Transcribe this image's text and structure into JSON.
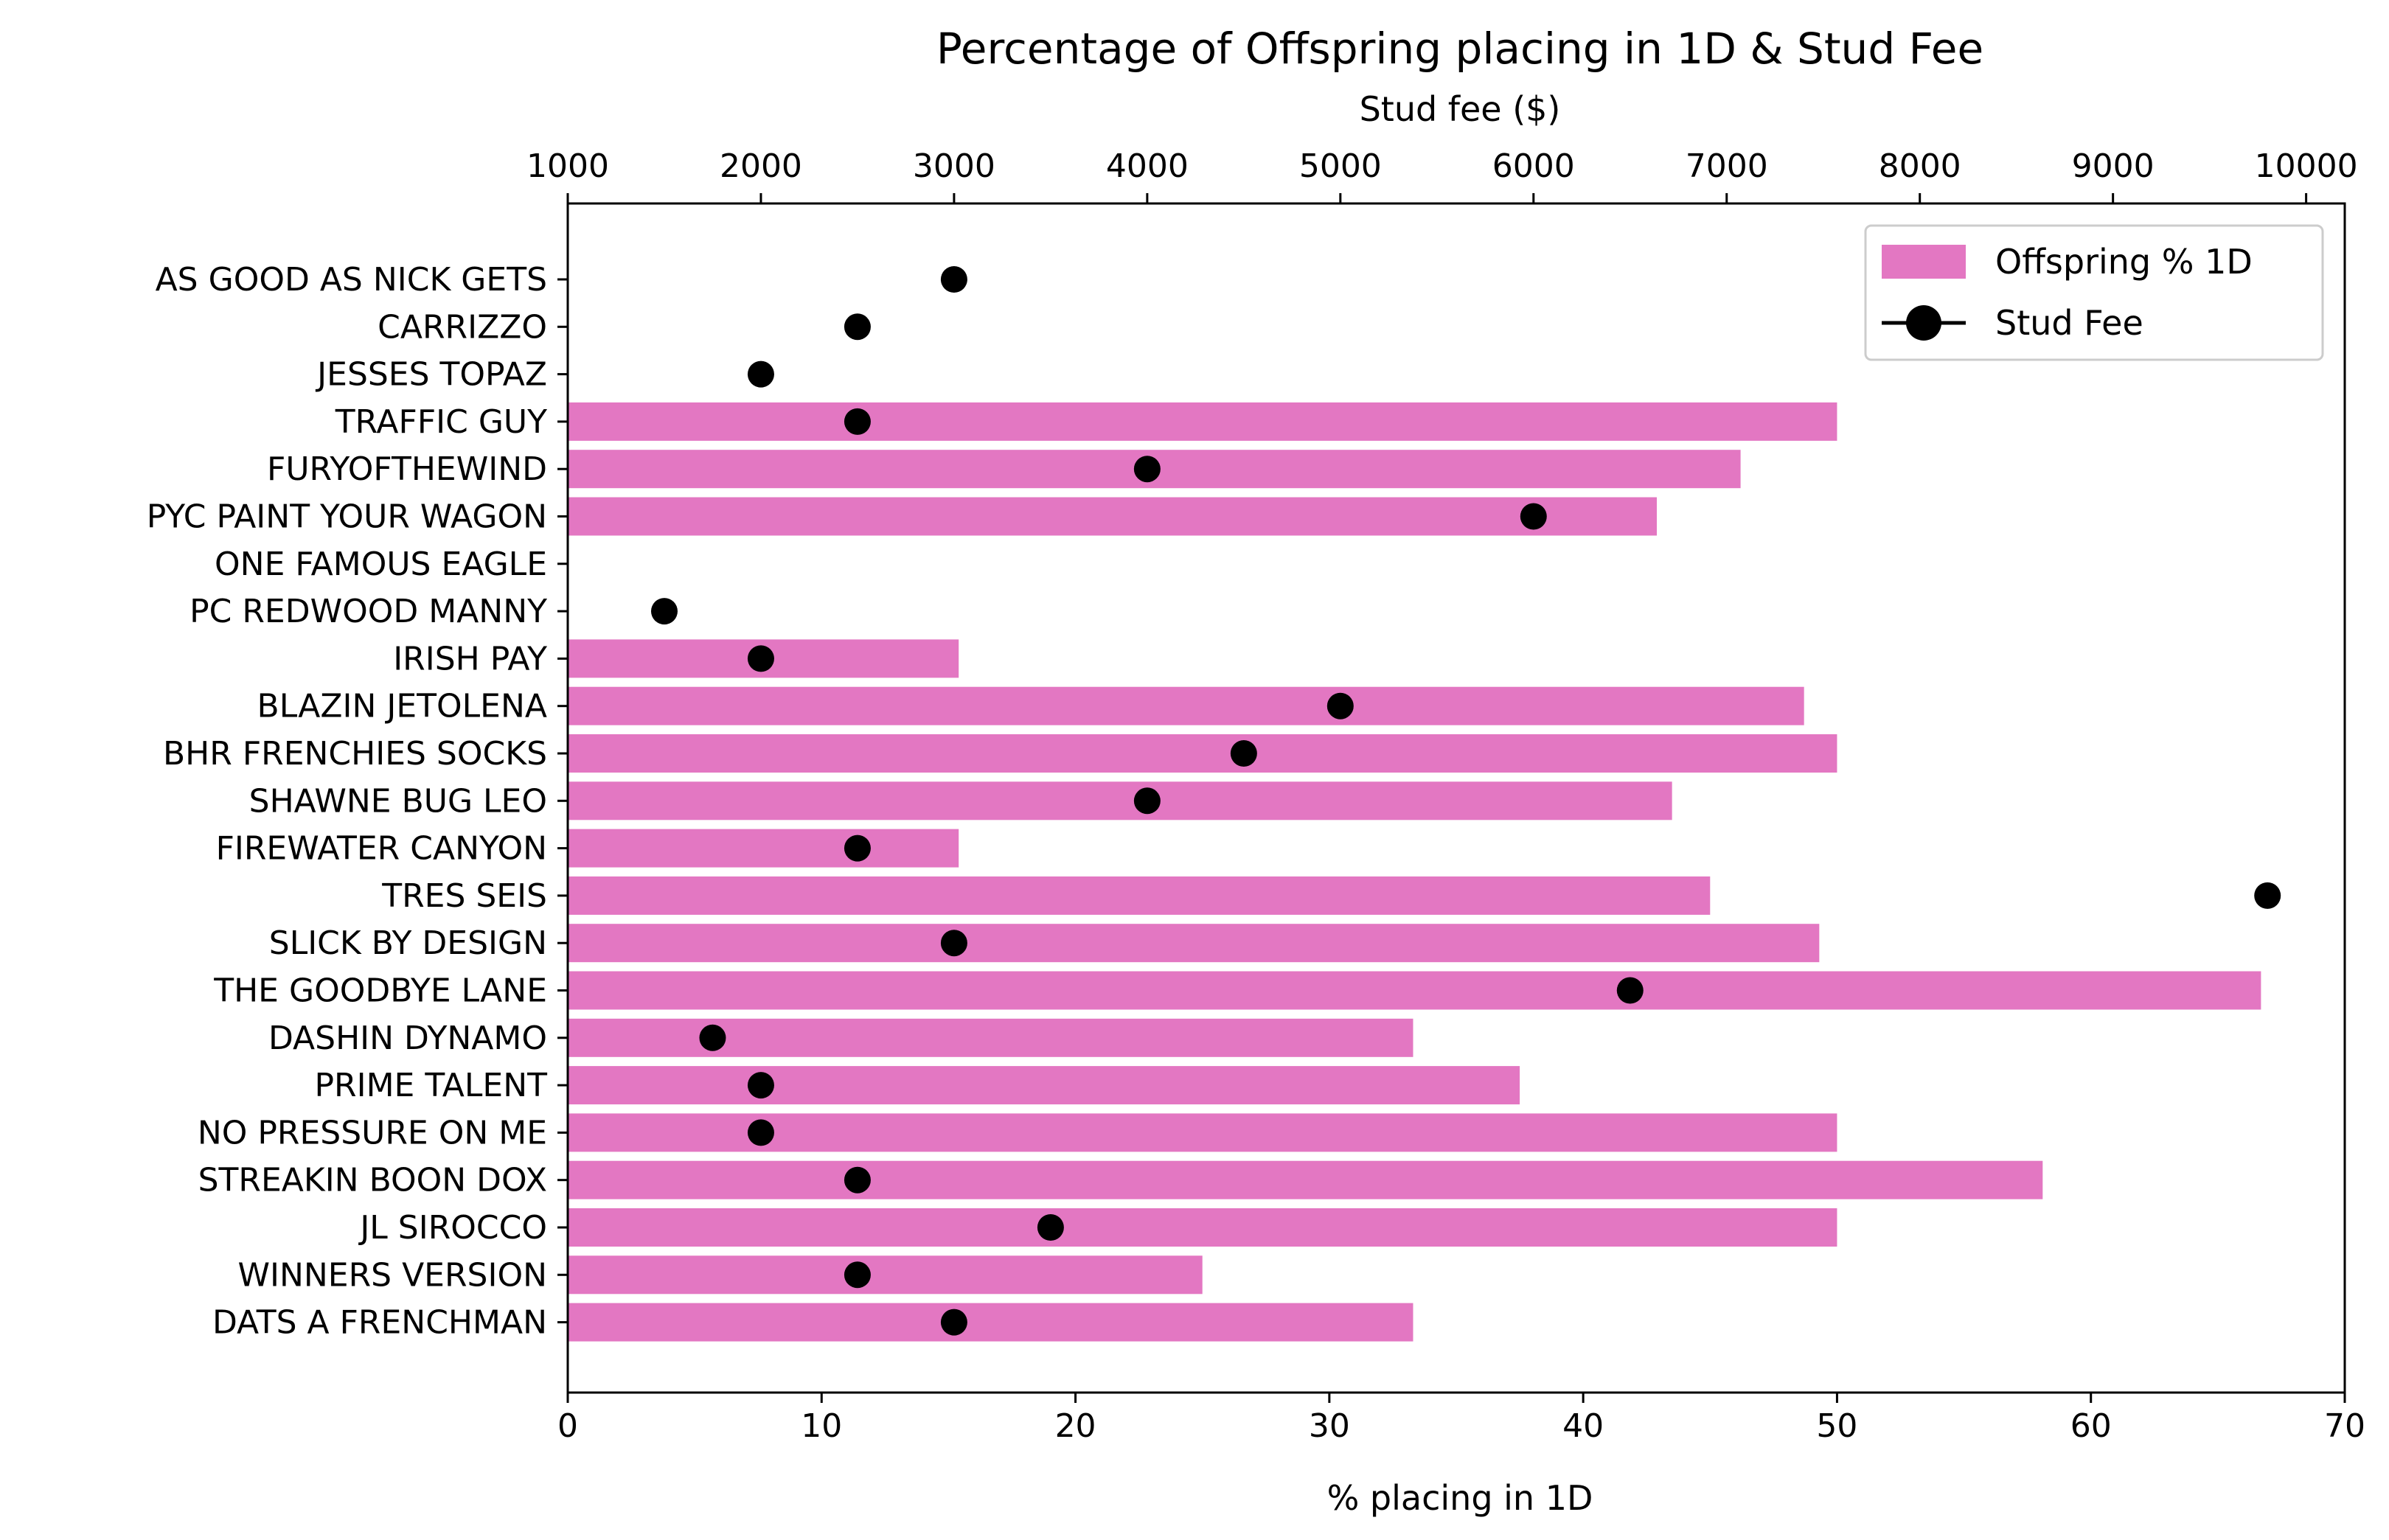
{
  "chart_data": {
    "type": "bar",
    "title": "Percentage of Offspring placing in 1D & Stud Fee",
    "xlabel": "% placing in 1D",
    "x2label": "Stud fee ($)",
    "xlim": [
      0,
      70
    ],
    "x2lim": [
      1000,
      10200
    ],
    "xticks": [
      0,
      10,
      20,
      30,
      40,
      50,
      60,
      70
    ],
    "x2ticks": [
      1000,
      2000,
      3000,
      4000,
      5000,
      6000,
      7000,
      8000,
      9000,
      10000
    ],
    "orientation": "horizontal",
    "legend_position": "top-right",
    "categories": [
      "AS GOOD AS NICK GETS",
      "CARRIZZO",
      "JESSES TOPAZ",
      "TRAFFIC GUY",
      "FURYOFTHEWIND",
      "PYC PAINT YOUR WAGON",
      "ONE FAMOUS EAGLE",
      "PC REDWOOD MANNY",
      "IRISH PAY",
      "BLAZIN JETOLENA",
      "BHR FRENCHIES SOCKS",
      "SHAWNE BUG LEO",
      "FIREWATER CANYON",
      "TRES SEIS",
      "SLICK BY DESIGN",
      "THE GOODBYE LANE",
      "DASHIN DYNAMO",
      "PRIME TALENT",
      "NO PRESSURE ON ME",
      "STREAKIN BOON DOX",
      "JL SIROCCO",
      "WINNERS VERSION",
      "DATS A FRENCHMAN"
    ],
    "series": [
      {
        "name": "Offspring % 1D",
        "axis": "bottom",
        "color": "#e377c2",
        "values": [
          0,
          0,
          0,
          50,
          46.2,
          42.9,
          0,
          0,
          15.4,
          48.7,
          50,
          43.5,
          15.4,
          45,
          49.3,
          66.7,
          33.3,
          37.5,
          50,
          58.1,
          50,
          25,
          33.3
        ]
      },
      {
        "name": "Stud Fee",
        "axis": "top",
        "color": "#000000",
        "values": [
          3000,
          2500,
          2000,
          2500,
          4000,
          6000,
          null,
          1500,
          2000,
          5000,
          4500,
          4000,
          2500,
          9800,
          3000,
          6500,
          1750,
          2000,
          2000,
          2500,
          3500,
          2500,
          3000
        ]
      }
    ]
  }
}
